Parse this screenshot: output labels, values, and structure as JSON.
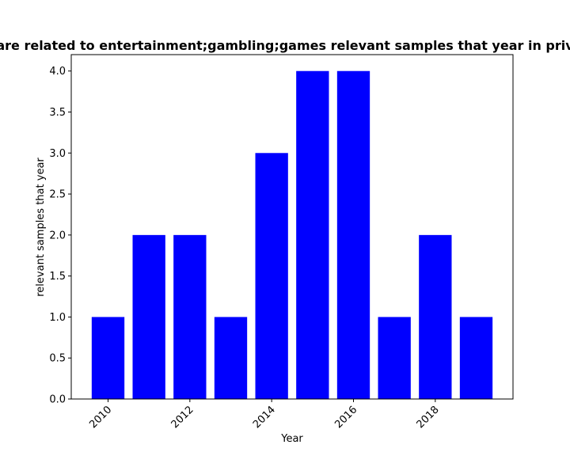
{
  "chart_data": {
    "type": "bar",
    "title": "are related to entertainment;gambling;games relevant samples that year in priv",
    "xlabel": "Year",
    "ylabel": "relevant samples that year",
    "categories": [
      2010,
      2011,
      2012,
      2013,
      2014,
      2015,
      2016,
      2017,
      2018,
      2019
    ],
    "values": [
      1,
      2,
      2,
      1,
      3,
      4,
      4,
      1,
      2,
      1
    ],
    "bar_color": "#0000ff",
    "xticks": [
      "2010",
      "2012",
      "2014",
      "2016",
      "2018"
    ],
    "xtick_values": [
      2010,
      2012,
      2014,
      2016,
      2018
    ],
    "yticks": [
      "0.0",
      "0.5",
      "1.0",
      "1.5",
      "2.0",
      "2.5",
      "3.0",
      "3.5",
      "4.0"
    ],
    "ytick_values": [
      0,
      0.5,
      1,
      1.5,
      2,
      2.5,
      3,
      3.5,
      4
    ],
    "xlim": [
      2009.1,
      2019.9
    ],
    "ylim": [
      0,
      4.2
    ],
    "grid": false,
    "legend": false
  }
}
